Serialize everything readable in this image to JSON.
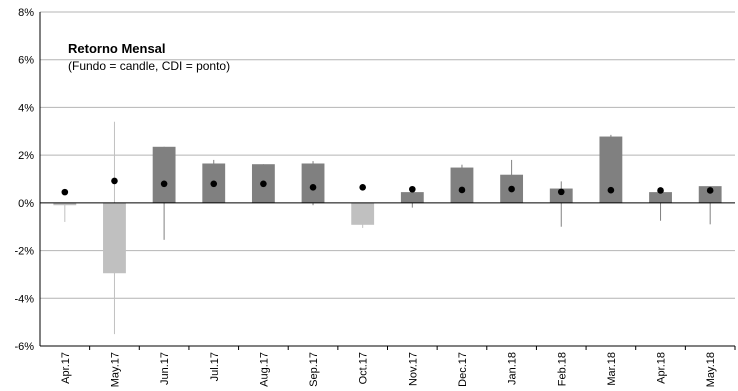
{
  "chart_data": {
    "type": "candlestick",
    "title": "Retorno Mensal",
    "subtitle": "(Fundo = candle, CDI = ponto)",
    "ylim": [
      -6,
      8
    ],
    "yticks": [
      "-6%",
      "-4%",
      "-2%",
      "0%",
      "2%",
      "4%",
      "6%",
      "8%"
    ],
    "ytick_values": [
      -6,
      -4,
      -2,
      0,
      2,
      4,
      6,
      8
    ],
    "categories": [
      "Apr.17",
      "May.17",
      "Jun.17",
      "Jul.17",
      "Aug.17",
      "Sep.17",
      "Oct.17",
      "Nov.17",
      "Dec.17",
      "Jan.18",
      "Feb.18",
      "Mar.18",
      "Apr.18",
      "May.18"
    ],
    "fund_return": [
      -0.1,
      -2.95,
      2.35,
      1.65,
      1.62,
      1.65,
      -0.92,
      0.45,
      1.48,
      1.18,
      0.6,
      2.78,
      0.45,
      0.7
    ],
    "fund_high": [
      0.0,
      3.4,
      2.35,
      1.8,
      1.62,
      1.75,
      0.0,
      0.45,
      1.6,
      1.8,
      0.9,
      2.85,
      0.45,
      0.7
    ],
    "fund_low": [
      -0.8,
      -5.5,
      -1.55,
      0.0,
      0.0,
      -0.1,
      -1.05,
      -0.2,
      0.0,
      0.0,
      -1.0,
      0.0,
      -0.75,
      -0.9
    ],
    "cdi": [
      0.45,
      0.92,
      0.8,
      0.8,
      0.8,
      0.65,
      0.65,
      0.57,
      0.54,
      0.58,
      0.46,
      0.53,
      0.52,
      0.52
    ],
    "colors": {
      "positive": "#808080",
      "negative": "#c0c0c0",
      "dot": "#000000",
      "grid": "#b4b4b4",
      "axis": "#000000"
    },
    "grid": true,
    "legend": "none"
  }
}
